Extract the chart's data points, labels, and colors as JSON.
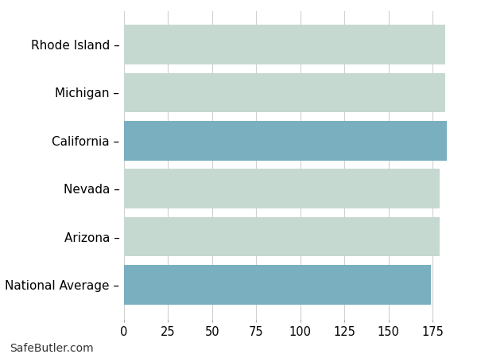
{
  "categories": [
    "National Average",
    "Arizona",
    "Nevada",
    "California",
    "Michigan",
    "Rhode Island"
  ],
  "values": [
    174,
    179,
    179,
    183,
    182,
    182
  ],
  "bar_colors": [
    "#7aafc0",
    "#c5d9d0",
    "#c5d9d0",
    "#7aafc0",
    "#c5d9d0",
    "#c5d9d0"
  ],
  "xlim": [
    0,
    192
  ],
  "xticks": [
    0,
    25,
    50,
    75,
    100,
    125,
    150,
    175
  ],
  "background_color": "#ffffff",
  "grid_color": "#d0d0d0",
  "bar_height": 0.82,
  "footnote": "SafeButler.com",
  "footnote_fontsize": 10,
  "tick_fontsize": 10.5,
  "label_fontsize": 11
}
